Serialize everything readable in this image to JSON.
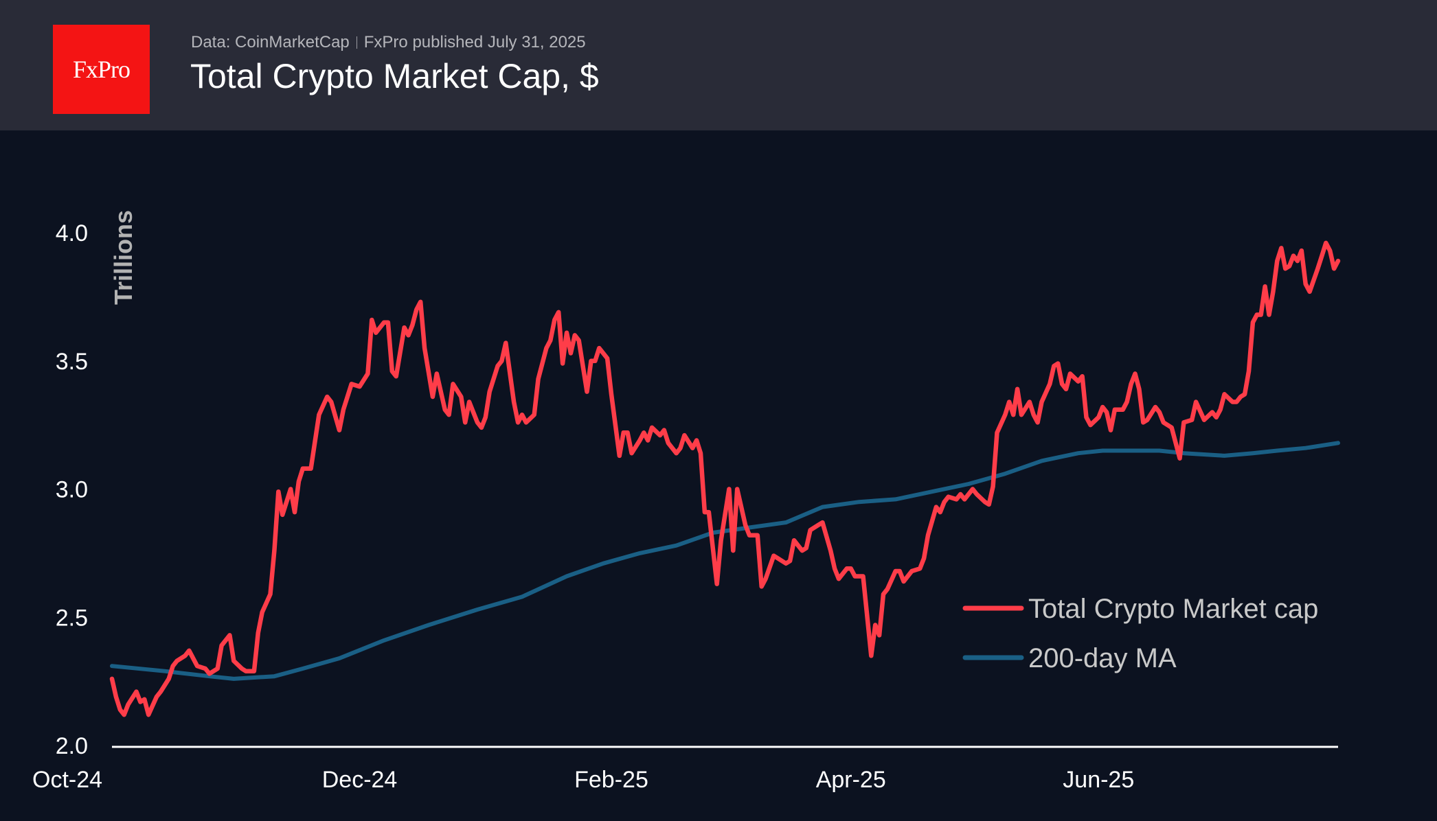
{
  "header": {
    "logo_text": "FxPro",
    "source": "Data: CoinMarketCap",
    "published": "FxPro published July 31, 2025",
    "title": "Total Crypto Market Cap, $"
  },
  "colors": {
    "header_bg": "#292b37",
    "background": "#0c1220",
    "logo": "#f41414",
    "market_cap": "#ff3d49",
    "ma": "#1a5f85"
  },
  "chart_data": {
    "type": "line",
    "title": "Total Crypto Market Cap, $",
    "ylabel": "Trillions",
    "xlabel": "",
    "ylim": [
      2.0,
      4.0
    ],
    "xlim": [
      "2024-10-01",
      "2025-07-30"
    ],
    "yticks": [
      "2.0",
      "2.5",
      "3.0",
      "3.5",
      "4.0"
    ],
    "xticks": [
      {
        "label": "Oct-24",
        "date": "2024-10-01"
      },
      {
        "label": "Dec-24",
        "date": "2024-12-01"
      },
      {
        "label": "Feb-25",
        "date": "2025-02-01"
      },
      {
        "label": "Apr-25",
        "date": "2025-04-01"
      },
      {
        "label": "Jun-25",
        "date": "2025-06-01"
      }
    ],
    "grid": false,
    "legend_position": "bottom-right",
    "series": [
      {
        "name": "Total Crypto Market cap",
        "color": "#ff3d49",
        "points": [
          [
            "2024-10-01",
            2.26
          ],
          [
            "2024-10-02",
            2.19
          ],
          [
            "2024-10-03",
            2.14
          ],
          [
            "2024-10-04",
            2.12
          ],
          [
            "2024-10-05",
            2.16
          ],
          [
            "2024-10-07",
            2.21
          ],
          [
            "2024-10-08",
            2.17
          ],
          [
            "2024-10-09",
            2.18
          ],
          [
            "2024-10-10",
            2.12
          ],
          [
            "2024-10-12",
            2.19
          ],
          [
            "2024-10-13",
            2.21
          ],
          [
            "2024-10-15",
            2.26
          ],
          [
            "2024-10-16",
            2.31
          ],
          [
            "2024-10-17",
            2.33
          ],
          [
            "2024-10-19",
            2.35
          ],
          [
            "2024-10-20",
            2.37
          ],
          [
            "2024-10-22",
            2.31
          ],
          [
            "2024-10-24",
            2.3
          ],
          [
            "2024-10-25",
            2.28
          ],
          [
            "2024-10-27",
            2.3
          ],
          [
            "2024-10-28",
            2.39
          ],
          [
            "2024-10-30",
            2.43
          ],
          [
            "2024-10-31",
            2.33
          ],
          [
            "2024-11-02",
            2.3
          ],
          [
            "2024-11-03",
            2.29
          ],
          [
            "2024-11-05",
            2.29
          ],
          [
            "2024-11-06",
            2.44
          ],
          [
            "2024-11-07",
            2.52
          ],
          [
            "2024-11-09",
            2.59
          ],
          [
            "2024-11-10",
            2.76
          ],
          [
            "2024-11-11",
            2.99
          ],
          [
            "2024-11-12",
            2.9
          ],
          [
            "2024-11-14",
            3.0
          ],
          [
            "2024-11-15",
            2.91
          ],
          [
            "2024-11-16",
            3.03
          ],
          [
            "2024-11-17",
            3.08
          ],
          [
            "2024-11-19",
            3.08
          ],
          [
            "2024-11-21",
            3.29
          ],
          [
            "2024-11-23",
            3.36
          ],
          [
            "2024-11-24",
            3.34
          ],
          [
            "2024-11-26",
            3.23
          ],
          [
            "2024-11-27",
            3.31
          ],
          [
            "2024-11-29",
            3.41
          ],
          [
            "2024-12-01",
            3.4
          ],
          [
            "2024-12-03",
            3.45
          ],
          [
            "2024-12-04",
            3.66
          ],
          [
            "2024-12-05",
            3.61
          ],
          [
            "2024-12-07",
            3.65
          ],
          [
            "2024-12-08",
            3.65
          ],
          [
            "2024-12-09",
            3.46
          ],
          [
            "2024-12-10",
            3.44
          ],
          [
            "2024-12-12",
            3.63
          ],
          [
            "2024-12-13",
            3.6
          ],
          [
            "2024-12-14",
            3.64
          ],
          [
            "2024-12-15",
            3.7
          ],
          [
            "2024-12-16",
            3.73
          ],
          [
            "2024-12-17",
            3.55
          ],
          [
            "2024-12-19",
            3.36
          ],
          [
            "2024-12-20",
            3.45
          ],
          [
            "2024-12-22",
            3.31
          ],
          [
            "2024-12-23",
            3.29
          ],
          [
            "2024-12-24",
            3.41
          ],
          [
            "2024-12-26",
            3.36
          ],
          [
            "2024-12-27",
            3.26
          ],
          [
            "2024-12-28",
            3.34
          ],
          [
            "2024-12-30",
            3.26
          ],
          [
            "2024-12-31",
            3.24
          ],
          [
            "2025-01-01",
            3.28
          ],
          [
            "2025-01-02",
            3.38
          ],
          [
            "2025-01-04",
            3.48
          ],
          [
            "2025-01-05",
            3.5
          ],
          [
            "2025-01-06",
            3.57
          ],
          [
            "2025-01-08",
            3.34
          ],
          [
            "2025-01-09",
            3.26
          ],
          [
            "2025-01-10",
            3.29
          ],
          [
            "2025-01-11",
            3.26
          ],
          [
            "2025-01-13",
            3.29
          ],
          [
            "2025-01-14",
            3.43
          ],
          [
            "2025-01-16",
            3.55
          ],
          [
            "2025-01-17",
            3.58
          ],
          [
            "2025-01-18",
            3.66
          ],
          [
            "2025-01-19",
            3.69
          ],
          [
            "2025-01-20",
            3.49
          ],
          [
            "2025-01-21",
            3.61
          ],
          [
            "2025-01-22",
            3.53
          ],
          [
            "2025-01-23",
            3.6
          ],
          [
            "2025-01-24",
            3.58
          ],
          [
            "2025-01-26",
            3.38
          ],
          [
            "2025-01-27",
            3.5
          ],
          [
            "2025-01-28",
            3.5
          ],
          [
            "2025-01-29",
            3.55
          ],
          [
            "2025-01-31",
            3.51
          ],
          [
            "2025-02-01",
            3.37
          ],
          [
            "2025-02-03",
            3.13
          ],
          [
            "2025-02-04",
            3.22
          ],
          [
            "2025-02-05",
            3.22
          ],
          [
            "2025-02-06",
            3.14
          ],
          [
            "2025-02-08",
            3.19
          ],
          [
            "2025-02-09",
            3.22
          ],
          [
            "2025-02-10",
            3.19
          ],
          [
            "2025-02-11",
            3.24
          ],
          [
            "2025-02-13",
            3.21
          ],
          [
            "2025-02-14",
            3.23
          ],
          [
            "2025-02-15",
            3.18
          ],
          [
            "2025-02-17",
            3.14
          ],
          [
            "2025-02-18",
            3.16
          ],
          [
            "2025-02-19",
            3.21
          ],
          [
            "2025-02-21",
            3.16
          ],
          [
            "2025-02-22",
            3.19
          ],
          [
            "2025-02-23",
            3.14
          ],
          [
            "2025-02-24",
            2.91
          ],
          [
            "2025-02-25",
            2.91
          ],
          [
            "2025-02-27",
            2.63
          ],
          [
            "2025-02-28",
            2.8
          ],
          [
            "2025-03-02",
            3.0
          ],
          [
            "2025-03-03",
            2.76
          ],
          [
            "2025-03-04",
            3.0
          ],
          [
            "2025-03-06",
            2.86
          ],
          [
            "2025-03-07",
            2.82
          ],
          [
            "2025-03-09",
            2.82
          ],
          [
            "2025-03-10",
            2.62
          ],
          [
            "2025-03-11",
            2.65
          ],
          [
            "2025-03-13",
            2.74
          ],
          [
            "2025-03-14",
            2.73
          ],
          [
            "2025-03-16",
            2.71
          ],
          [
            "2025-03-17",
            2.72
          ],
          [
            "2025-03-18",
            2.8
          ],
          [
            "2025-03-20",
            2.76
          ],
          [
            "2025-03-21",
            2.77
          ],
          [
            "2025-03-22",
            2.84
          ],
          [
            "2025-03-24",
            2.86
          ],
          [
            "2025-03-25",
            2.87
          ],
          [
            "2025-03-27",
            2.76
          ],
          [
            "2025-03-28",
            2.69
          ],
          [
            "2025-03-29",
            2.65
          ],
          [
            "2025-03-31",
            2.69
          ],
          [
            "2025-04-01",
            2.69
          ],
          [
            "2025-04-02",
            2.66
          ],
          [
            "2025-04-04",
            2.66
          ],
          [
            "2025-04-06",
            2.35
          ],
          [
            "2025-04-07",
            2.47
          ],
          [
            "2025-04-08",
            2.43
          ],
          [
            "2025-04-09",
            2.59
          ],
          [
            "2025-04-10",
            2.61
          ],
          [
            "2025-04-12",
            2.68
          ],
          [
            "2025-04-13",
            2.68
          ],
          [
            "2025-04-14",
            2.64
          ],
          [
            "2025-04-16",
            2.68
          ],
          [
            "2025-04-18",
            2.69
          ],
          [
            "2025-04-19",
            2.73
          ],
          [
            "2025-04-20",
            2.82
          ],
          [
            "2025-04-22",
            2.93
          ],
          [
            "2025-04-23",
            2.91
          ],
          [
            "2025-04-24",
            2.95
          ],
          [
            "2025-04-25",
            2.97
          ],
          [
            "2025-04-27",
            2.96
          ],
          [
            "2025-04-28",
            2.98
          ],
          [
            "2025-04-29",
            2.96
          ],
          [
            "2025-05-01",
            3.0
          ],
          [
            "2025-05-02",
            2.98
          ],
          [
            "2025-05-04",
            2.95
          ],
          [
            "2025-05-05",
            2.94
          ],
          [
            "2025-05-06",
            3.01
          ],
          [
            "2025-05-07",
            3.22
          ],
          [
            "2025-05-09",
            3.29
          ],
          [
            "2025-05-10",
            3.34
          ],
          [
            "2025-05-11",
            3.29
          ],
          [
            "2025-05-12",
            3.39
          ],
          [
            "2025-05-13",
            3.29
          ],
          [
            "2025-05-15",
            3.34
          ],
          [
            "2025-05-16",
            3.29
          ],
          [
            "2025-05-17",
            3.26
          ],
          [
            "2025-05-18",
            3.34
          ],
          [
            "2025-05-20",
            3.41
          ],
          [
            "2025-05-21",
            3.48
          ],
          [
            "2025-05-22",
            3.49
          ],
          [
            "2025-05-23",
            3.41
          ],
          [
            "2025-05-24",
            3.39
          ],
          [
            "2025-05-25",
            3.45
          ],
          [
            "2025-05-27",
            3.42
          ],
          [
            "2025-05-28",
            3.44
          ],
          [
            "2025-05-29",
            3.28
          ],
          [
            "2025-05-30",
            3.25
          ],
          [
            "2025-06-01",
            3.28
          ],
          [
            "2025-06-02",
            3.32
          ],
          [
            "2025-06-03",
            3.3
          ],
          [
            "2025-06-04",
            3.23
          ],
          [
            "2025-06-05",
            3.31
          ],
          [
            "2025-06-07",
            3.31
          ],
          [
            "2025-06-08",
            3.34
          ],
          [
            "2025-06-09",
            3.41
          ],
          [
            "2025-06-10",
            3.45
          ],
          [
            "2025-06-11",
            3.39
          ],
          [
            "2025-06-12",
            3.26
          ],
          [
            "2025-06-13",
            3.27
          ],
          [
            "2025-06-15",
            3.32
          ],
          [
            "2025-06-16",
            3.3
          ],
          [
            "2025-06-17",
            3.26
          ],
          [
            "2025-06-19",
            3.24
          ],
          [
            "2025-06-21",
            3.12
          ],
          [
            "2025-06-22",
            3.26
          ],
          [
            "2025-06-24",
            3.27
          ],
          [
            "2025-06-25",
            3.34
          ],
          [
            "2025-06-27",
            3.27
          ],
          [
            "2025-06-29",
            3.3
          ],
          [
            "2025-06-30",
            3.28
          ],
          [
            "2025-07-01",
            3.31
          ],
          [
            "2025-07-02",
            3.37
          ],
          [
            "2025-07-04",
            3.34
          ],
          [
            "2025-07-05",
            3.34
          ],
          [
            "2025-07-06",
            3.36
          ],
          [
            "2025-07-07",
            3.37
          ],
          [
            "2025-07-08",
            3.46
          ],
          [
            "2025-07-09",
            3.65
          ],
          [
            "2025-07-10",
            3.68
          ],
          [
            "2025-07-11",
            3.68
          ],
          [
            "2025-07-12",
            3.79
          ],
          [
            "2025-07-13",
            3.68
          ],
          [
            "2025-07-14",
            3.77
          ],
          [
            "2025-07-15",
            3.89
          ],
          [
            "2025-07-16",
            3.94
          ],
          [
            "2025-07-17",
            3.86
          ],
          [
            "2025-07-18",
            3.87
          ],
          [
            "2025-07-19",
            3.91
          ],
          [
            "2025-07-20",
            3.89
          ],
          [
            "2025-07-21",
            3.93
          ],
          [
            "2025-07-22",
            3.8
          ],
          [
            "2025-07-23",
            3.77
          ],
          [
            "2025-07-25",
            3.86
          ],
          [
            "2025-07-26",
            3.91
          ],
          [
            "2025-07-27",
            3.96
          ],
          [
            "2025-07-28",
            3.93
          ],
          [
            "2025-07-29",
            3.86
          ],
          [
            "2025-07-30",
            3.89
          ]
        ]
      },
      {
        "name": "200-day MA",
        "color": "#1a5f85",
        "points": [
          [
            "2024-10-01",
            2.31
          ],
          [
            "2024-10-14",
            2.29
          ],
          [
            "2024-10-25",
            2.27
          ],
          [
            "2024-10-31",
            2.26
          ],
          [
            "2024-11-10",
            2.27
          ],
          [
            "2024-11-17",
            2.3
          ],
          [
            "2024-11-26",
            2.34
          ],
          [
            "2024-12-07",
            2.41
          ],
          [
            "2024-12-18",
            2.47
          ],
          [
            "2024-12-30",
            2.53
          ],
          [
            "2025-01-10",
            2.58
          ],
          [
            "2025-01-21",
            2.66
          ],
          [
            "2025-01-30",
            2.71
          ],
          [
            "2025-02-08",
            2.75
          ],
          [
            "2025-02-17",
            2.78
          ],
          [
            "2025-02-26",
            2.83
          ],
          [
            "2025-03-07",
            2.85
          ],
          [
            "2025-03-16",
            2.87
          ],
          [
            "2025-03-25",
            2.93
          ],
          [
            "2025-04-03",
            2.95
          ],
          [
            "2025-04-12",
            2.96
          ],
          [
            "2025-04-21",
            2.99
          ],
          [
            "2025-04-30",
            3.02
          ],
          [
            "2025-05-09",
            3.06
          ],
          [
            "2025-05-18",
            3.11
          ],
          [
            "2025-05-27",
            3.14
          ],
          [
            "2025-06-02",
            3.15
          ],
          [
            "2025-06-12",
            3.15
          ],
          [
            "2025-06-16",
            3.15
          ],
          [
            "2025-06-22",
            3.14
          ],
          [
            "2025-07-02",
            3.13
          ],
          [
            "2025-07-09",
            3.14
          ],
          [
            "2025-07-15",
            3.15
          ],
          [
            "2025-07-22",
            3.16
          ],
          [
            "2025-07-30",
            3.18
          ]
        ]
      }
    ]
  }
}
